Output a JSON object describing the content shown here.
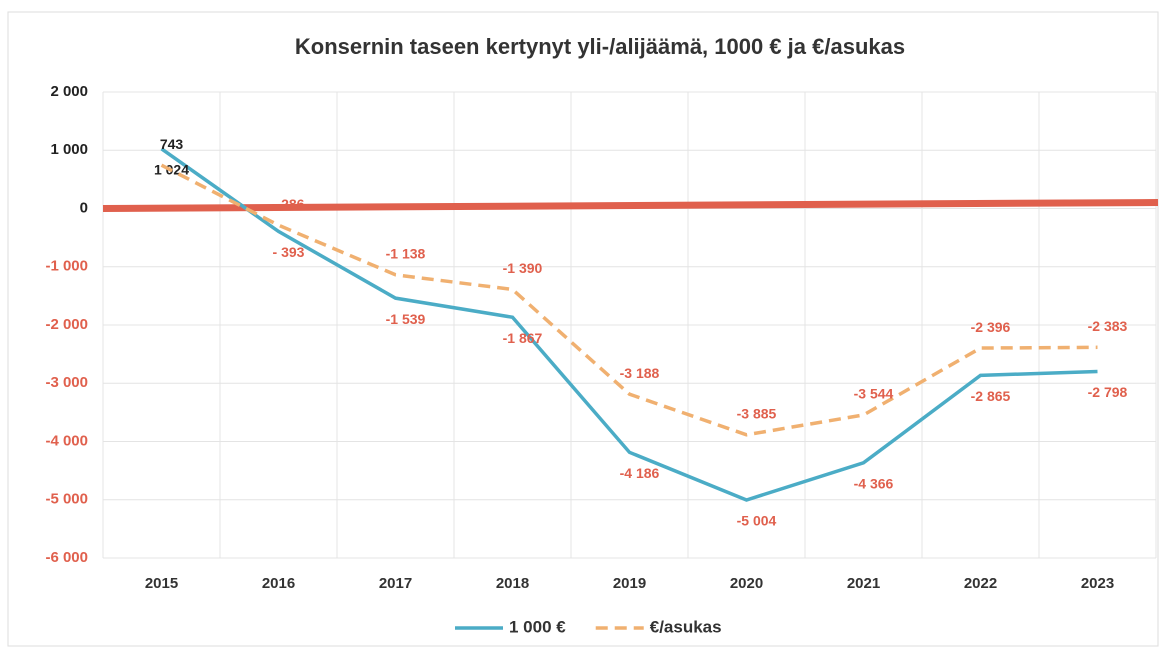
{
  "chart_data": {
    "type": "line",
    "title": "Konsernin taseen kertynyt yli-/alijäämä, 1000 € ja €/asukas",
    "categories": [
      "2015",
      "2016",
      "2017",
      "2018",
      "2019",
      "2020",
      "2021",
      "2022",
      "2023"
    ],
    "series": [
      {
        "name": "1 000 €",
        "color": "#4bacc6",
        "dash": false,
        "values": [
          1024,
          -393,
          -1539,
          -1867,
          -4186,
          -5004,
          -4366,
          -2865,
          -2798
        ],
        "value_labels": [
          "1 024",
          "- 393",
          "-1 539",
          "-1 867",
          "-4 186",
          "-5 004",
          "-4 366",
          "-2 865",
          "-2 798"
        ]
      },
      {
        "name": "€/asukas",
        "color": "#f0b070",
        "dash": true,
        "values": [
          743,
          -286,
          -1138,
          -1390,
          -3188,
          -3885,
          -3544,
          -2396,
          -2383
        ],
        "value_labels": [
          "743",
          "- 286",
          "-1 138",
          "-1 390",
          "-3 188",
          "-3 885",
          "-3 544",
          "-2 396",
          "-2 383"
        ]
      }
    ],
    "ylim": [
      -6000,
      2000
    ],
    "yticks": [
      {
        "value": 2000,
        "label": "2 000"
      },
      {
        "value": 1000,
        "label": "1 000"
      },
      0,
      {
        "value": -1000,
        "label": "-1 000"
      },
      {
        "value": -2000,
        "label": "-2 000"
      },
      {
        "value": -3000,
        "label": "-3 000"
      },
      {
        "value": -4000,
        "label": "-4 000"
      },
      {
        "value": -5000,
        "label": "-5 000"
      },
      {
        "value": -6000,
        "label": "-6 000"
      }
    ],
    "grid": true,
    "zero_line_color": "#e0604d",
    "negative_color": "#e0604d",
    "legend": "bottom"
  }
}
